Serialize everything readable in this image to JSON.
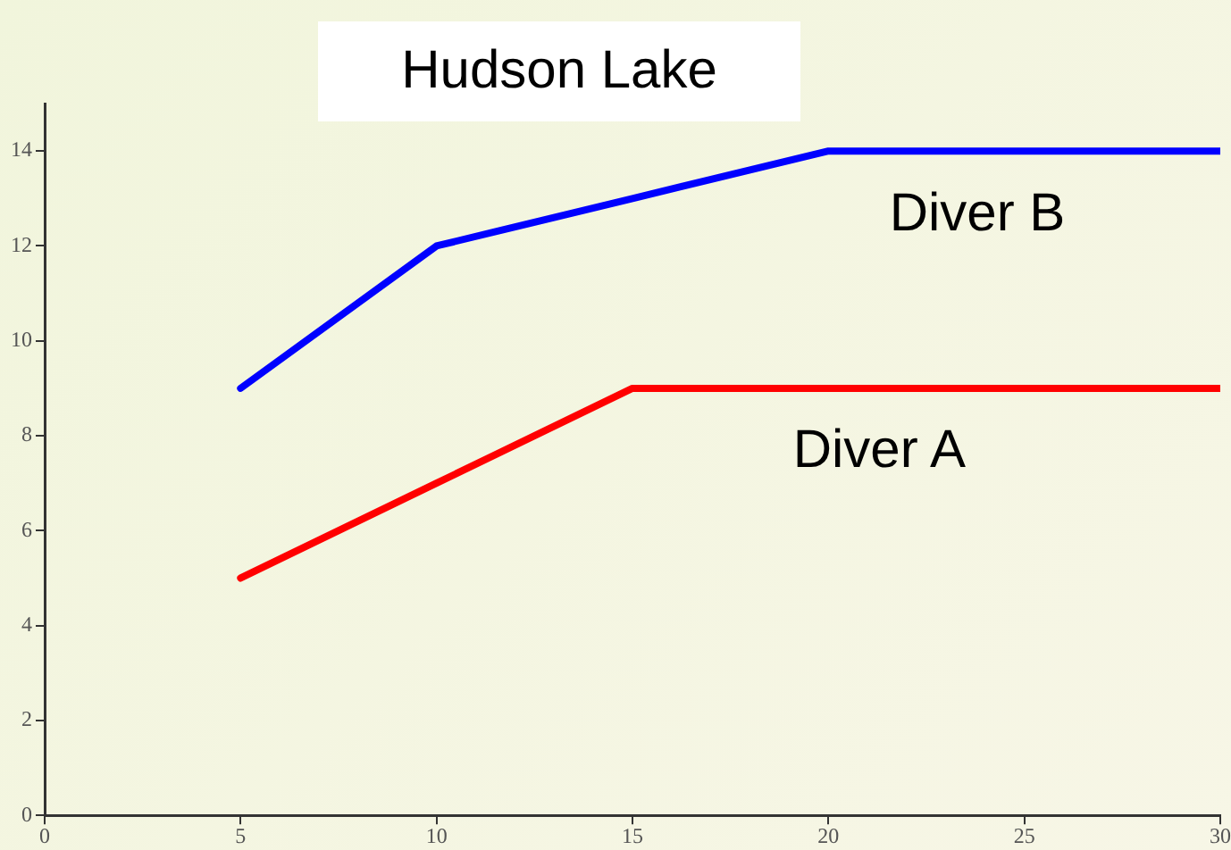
{
  "chart_data": {
    "type": "line",
    "title": "Hudson Lake",
    "xlim": [
      0,
      30
    ],
    "xticks": [
      0,
      5,
      10,
      15,
      20,
      25,
      30
    ],
    "ylim": [
      0,
      15
    ],
    "yticks": [
      0,
      2,
      4,
      6,
      8,
      10,
      12,
      14
    ],
    "grid": false,
    "legend": false,
    "marker": "none",
    "series": [
      {
        "name": "Diver B",
        "color": "#0000ff",
        "x": [
          5,
          10,
          15,
          20,
          30
        ],
        "values": [
          9,
          12,
          13,
          14,
          14
        ]
      },
      {
        "name": "Diver A",
        "color": "#ff0000",
        "x": [
          5,
          10,
          15,
          30
        ],
        "values": [
          5,
          7,
          9,
          9
        ]
      }
    ]
  }
}
